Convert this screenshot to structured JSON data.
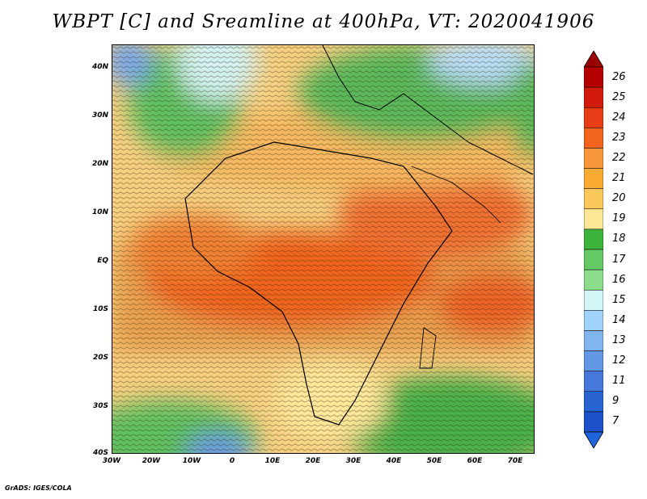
{
  "title": "WBPT [C] and Sreamline at 400hPa, VT: 2020041906",
  "footer": "GrADS: IGES/COLA",
  "axes": {
    "lat_labels": [
      "40N",
      "30N",
      "20N",
      "10N",
      "EQ",
      "10S",
      "20S",
      "30S",
      "40S"
    ],
    "lon_labels": [
      "30W",
      "20W",
      "10W",
      "0",
      "10E",
      "20E",
      "30E",
      "40E",
      "50E",
      "60E",
      "70E"
    ]
  },
  "colorbar": {
    "labels": [
      "26",
      "25",
      "24",
      "23",
      "22",
      "21",
      "20",
      "19",
      "18",
      "17",
      "16",
      "15",
      "14",
      "13",
      "12",
      "11",
      "9",
      "7"
    ],
    "colors": [
      "#b40000",
      "#d21a0a",
      "#e83c14",
      "#f0641e",
      "#f8963c",
      "#faaa32",
      "#fac85a",
      "#fde796",
      "#3cb43c",
      "#64c864",
      "#8cdc8c",
      "#d2f5f5",
      "#a0d2fa",
      "#82b4f0",
      "#6496e6",
      "#4678dc",
      "#2864d2",
      "#1e50c8"
    ],
    "top_triangle_color": "#9a0000",
    "bottom_triangle_color": "#1e64dc"
  }
}
